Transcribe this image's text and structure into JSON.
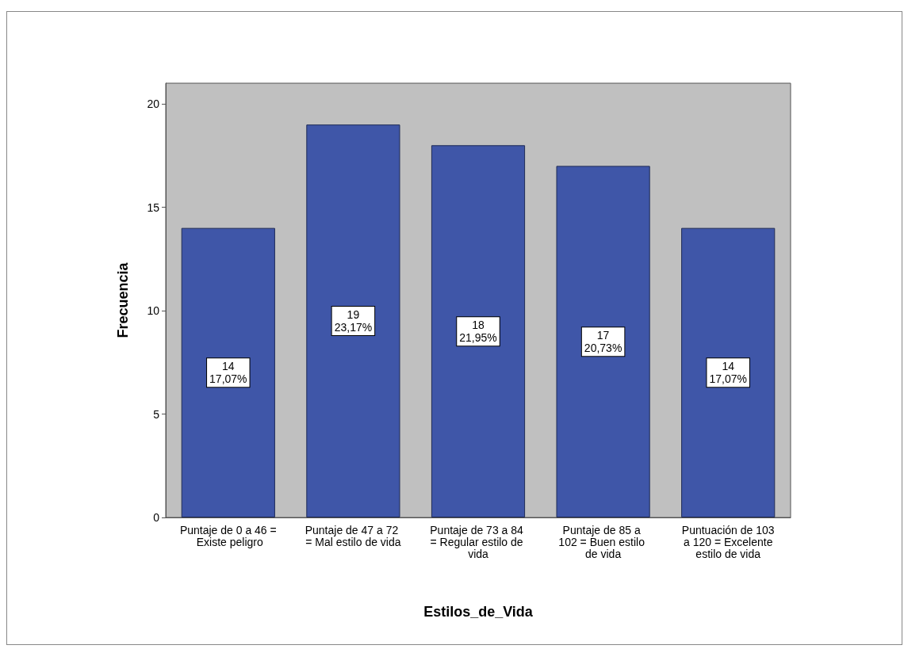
{
  "chart_data": {
    "type": "bar",
    "xlabel": "Estilos_de_Vida",
    "ylabel": "Frecuencia",
    "categories": [
      "Puntaje de 0 a 46 = Existe peligro",
      "Puntaje de 47 a 72 = Mal estilo de vida",
      "Puntaje de 73 a 84 = Regular estilo de vida",
      "Puntaje de 85 a 102 = Buen estilo de vida",
      "Puntuación de 103 a 120 = Excelente estilo de vida"
    ],
    "values": [
      14,
      19,
      18,
      17,
      14
    ],
    "value_labels": [
      "14\n17,07%",
      "19\n23,17%",
      "18\n21,95%",
      "17\n20,73%",
      "14\n17,07%"
    ],
    "color": "#3f56a8",
    "ylim": [
      0,
      21
    ],
    "yticks": [
      0,
      5,
      10,
      15,
      20
    ],
    "grid": false
  }
}
